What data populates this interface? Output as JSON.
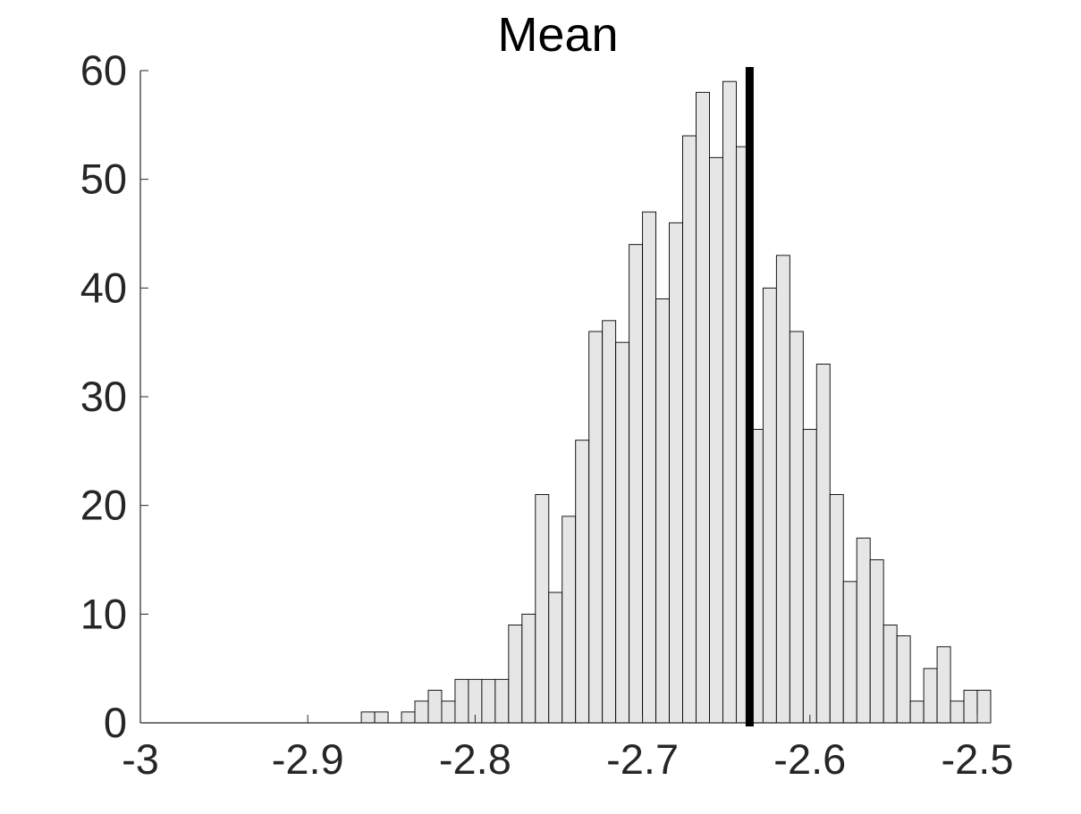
{
  "chart_data": {
    "type": "bar",
    "title": "Mean",
    "xlabel": "",
    "ylabel": "",
    "xlim": [
      -3,
      -2.5
    ],
    "ylim": [
      0,
      60
    ],
    "x_ticks": [
      {
        "value": -3,
        "label": "-3"
      },
      {
        "value": -2.9,
        "label": "-2.9"
      },
      {
        "value": -2.8,
        "label": "-2.8"
      },
      {
        "value": -2.7,
        "label": "-2.7"
      },
      {
        "value": -2.6,
        "label": "-2.6"
      },
      {
        "value": -2.5,
        "label": "-2.5"
      }
    ],
    "y_ticks": [
      {
        "value": 0,
        "label": "0"
      },
      {
        "value": 10,
        "label": "10"
      },
      {
        "value": 20,
        "label": "20"
      },
      {
        "value": 30,
        "label": "30"
      },
      {
        "value": 40,
        "label": "40"
      },
      {
        "value": 50,
        "label": "50"
      },
      {
        "value": 60,
        "label": "60"
      }
    ],
    "grid": false,
    "bar_fill": "#e6e6e6",
    "bar_edge": "#000000",
    "bin_width": 0.008,
    "bin_start": -2.868,
    "counts": [
      1,
      1,
      0,
      1,
      2,
      3,
      2,
      4,
      4,
      4,
      4,
      9,
      10,
      21,
      12,
      19,
      26,
      36,
      37,
      35,
      44,
      47,
      39,
      46,
      54,
      58,
      52,
      59,
      53,
      27,
      40,
      43,
      36,
      27,
      33,
      21,
      13,
      17,
      15,
      9,
      8,
      2,
      5,
      7,
      2,
      3,
      3
    ],
    "reference_line": {
      "x": -2.636,
      "color": "#000000"
    }
  }
}
